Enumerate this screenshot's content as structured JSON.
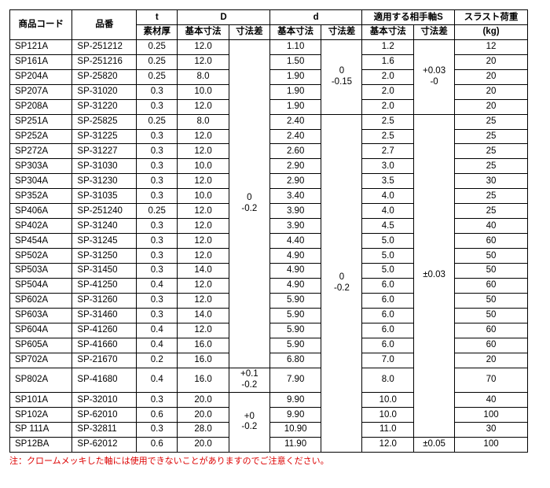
{
  "headers": {
    "code": "商品コード",
    "partno": "品番",
    "t": "t",
    "D": "D",
    "d": "d",
    "S": "適用する相手軸S",
    "thrust": "スラスト荷重",
    "matThick": "素材厚",
    "basic": "基本寸法",
    "tol": "寸法差",
    "kg": "(kg)"
  },
  "D_tol_main": "0\n-0.2",
  "D_tol_sp802": "+0.1\n-0.2",
  "D_tol_last": "+0\n-0.2",
  "d_tol_g1": "0\n-0.15",
  "d_tol_g2": "0\n-0.2",
  "S_tol_g1": "+0.03\n-0",
  "S_tol_g2": "±0.03",
  "S_tol_g3": "±0.05",
  "rows": [
    {
      "code": "SP121A",
      "part": "SP-251212",
      "t": "0.25",
      "D": "12.0",
      "d": "1.10",
      "S": "1.2",
      "thrust": "12"
    },
    {
      "code": "SP161A",
      "part": "SP-251216",
      "t": "0.25",
      "D": "12.0",
      "d": "1.50",
      "S": "1.6",
      "thrust": "20"
    },
    {
      "code": "SP204A",
      "part": "SP-25820",
      "t": "0.25",
      "D": "8.0",
      "d": "1.90",
      "S": "2.0",
      "thrust": "20"
    },
    {
      "code": "SP207A",
      "part": "SP-31020",
      "t": "0.3",
      "D": "10.0",
      "d": "1.90",
      "S": "2.0",
      "thrust": "20"
    },
    {
      "code": "SP208A",
      "part": "SP-31220",
      "t": "0.3",
      "D": "12.0",
      "d": "1.90",
      "S": "2.0",
      "thrust": "20"
    },
    {
      "code": "SP251A",
      "part": "SP-25825",
      "t": "0.25",
      "D": "8.0",
      "d": "2.40",
      "S": "2.5",
      "thrust": "25"
    },
    {
      "code": "SP252A",
      "part": "SP-31225",
      "t": "0.3",
      "D": "12.0",
      "d": "2.40",
      "S": "2.5",
      "thrust": "25"
    },
    {
      "code": "SP272A",
      "part": "SP-31227",
      "t": "0.3",
      "D": "12.0",
      "d": "2.60",
      "S": "2.7",
      "thrust": "25"
    },
    {
      "code": "SP303A",
      "part": "SP-31030",
      "t": "0.3",
      "D": "10.0",
      "d": "2.90",
      "S": "3.0",
      "thrust": "25"
    },
    {
      "code": "SP304A",
      "part": "SP-31230",
      "t": "0.3",
      "D": "12.0",
      "d": "2.90",
      "S": "3.5",
      "thrust": "30"
    },
    {
      "code": "SP352A",
      "part": "SP-31035",
      "t": "0.3",
      "D": "10.0",
      "d": "3.40",
      "S": "4.0",
      "thrust": "25"
    },
    {
      "code": "SP406A",
      "part": "SP-251240",
      "t": "0.25",
      "D": "12.0",
      "d": "3.90",
      "S": "4.0",
      "thrust": "25"
    },
    {
      "code": "SP402A",
      "part": "SP-31240",
      "t": "0.3",
      "D": "12.0",
      "d": "3.90",
      "S": "4.5",
      "thrust": "40"
    },
    {
      "code": "SP454A",
      "part": "SP-31245",
      "t": "0.3",
      "D": "12.0",
      "d": "4.40",
      "S": "5.0",
      "thrust": "60"
    },
    {
      "code": "SP502A",
      "part": "SP-31250",
      "t": "0.3",
      "D": "12.0",
      "d": "4.90",
      "S": "5.0",
      "thrust": "50"
    },
    {
      "code": "SP503A",
      "part": "SP-31450",
      "t": "0.3",
      "D": "14.0",
      "d": "4.90",
      "S": "5.0",
      "thrust": "50"
    },
    {
      "code": "SP504A",
      "part": "SP-41250",
      "t": "0.4",
      "D": "12.0",
      "d": "4.90",
      "S": "6.0",
      "thrust": "60"
    },
    {
      "code": "SP602A",
      "part": "SP-31260",
      "t": "0.3",
      "D": "12.0",
      "d": "5.90",
      "S": "6.0",
      "thrust": "50"
    },
    {
      "code": "SP603A",
      "part": "SP-31460",
      "t": "0.3",
      "D": "14.0",
      "d": "5.90",
      "S": "6.0",
      "thrust": "50"
    },
    {
      "code": "SP604A",
      "part": "SP-41260",
      "t": "0.4",
      "D": "12.0",
      "d": "5.90",
      "S": "6.0",
      "thrust": "60"
    },
    {
      "code": "SP605A",
      "part": "SP-41660",
      "t": "0.4",
      "D": "16.0",
      "d": "5.90",
      "S": "6.0",
      "thrust": "60"
    },
    {
      "code": "SP702A",
      "part": "SP-21670",
      "t": "0.2",
      "D": "16.0",
      "d": "6.80",
      "S": "7.0",
      "thrust": "20"
    },
    {
      "code": "SP802A",
      "part": "SP-41680",
      "t": "0.4",
      "D": "16.0",
      "d": "7.90",
      "S": "8.0",
      "thrust": "70"
    },
    {
      "code": "SP101A",
      "part": "SP-32010",
      "t": "0.3",
      "D": "20.0",
      "d": "9.90",
      "S": "10.0",
      "thrust": "40"
    },
    {
      "code": "SP102A",
      "part": "SP-62010",
      "t": "0.6",
      "D": "20.0",
      "d": "9.90",
      "S": "10.0",
      "thrust": "100"
    },
    {
      "code": "SP 111A",
      "part": "SP-32811",
      "t": "0.3",
      "D": "28.0",
      "d": "10.90",
      "S": "11.0",
      "thrust": "30"
    },
    {
      "code": "SP12BA",
      "part": "SP-62012",
      "t": "0.6",
      "D": "20.0",
      "d": "11.90",
      "S": "12.0",
      "thrust": "100"
    }
  ],
  "note": "注：クロームメッキした軸には使用できないことがありますのでご注意ください。",
  "colors": {
    "note": "#d00000",
    "border": "#000000"
  }
}
